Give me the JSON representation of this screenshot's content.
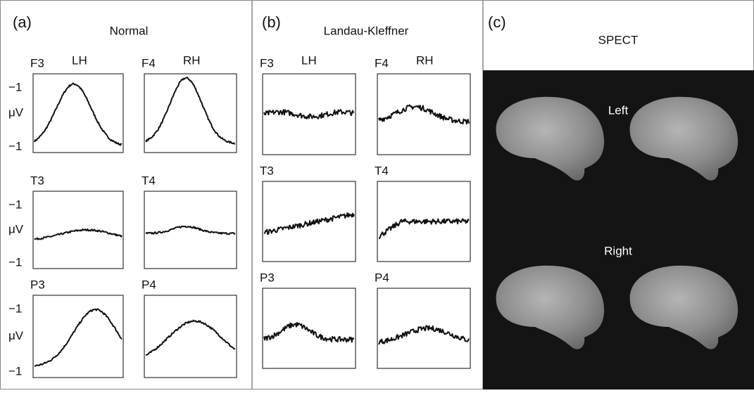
{
  "panels": [
    {
      "label": "(a)",
      "title": "Normal",
      "plots": [
        {
          "electrode": "F3",
          "hemisphere": "LH"
        },
        {
          "electrode": "F4",
          "hemisphere": "RH"
        },
        {
          "electrode": "T3"
        },
        {
          "electrode": "T4"
        },
        {
          "electrode": "P3"
        },
        {
          "electrode": "P4"
        }
      ],
      "y_labels": [
        [
          "−1",
          "μV",
          "−1"
        ],
        [
          "−1",
          "μV",
          "−1"
        ],
        [
          "−1",
          "μV",
          "−1"
        ]
      ]
    },
    {
      "label": "(b)",
      "title": "Landau-Kleffner",
      "plots": [
        {
          "electrode": "F3",
          "hemisphere": "LH"
        },
        {
          "electrode": "F4",
          "hemisphere": "RH"
        },
        {
          "electrode": "T3"
        },
        {
          "electrode": "T4"
        },
        {
          "electrode": "P3"
        },
        {
          "electrode": "P4"
        }
      ]
    },
    {
      "label": "(c)",
      "title": "SPECT",
      "views": [
        "Left",
        "Right"
      ]
    }
  ]
}
